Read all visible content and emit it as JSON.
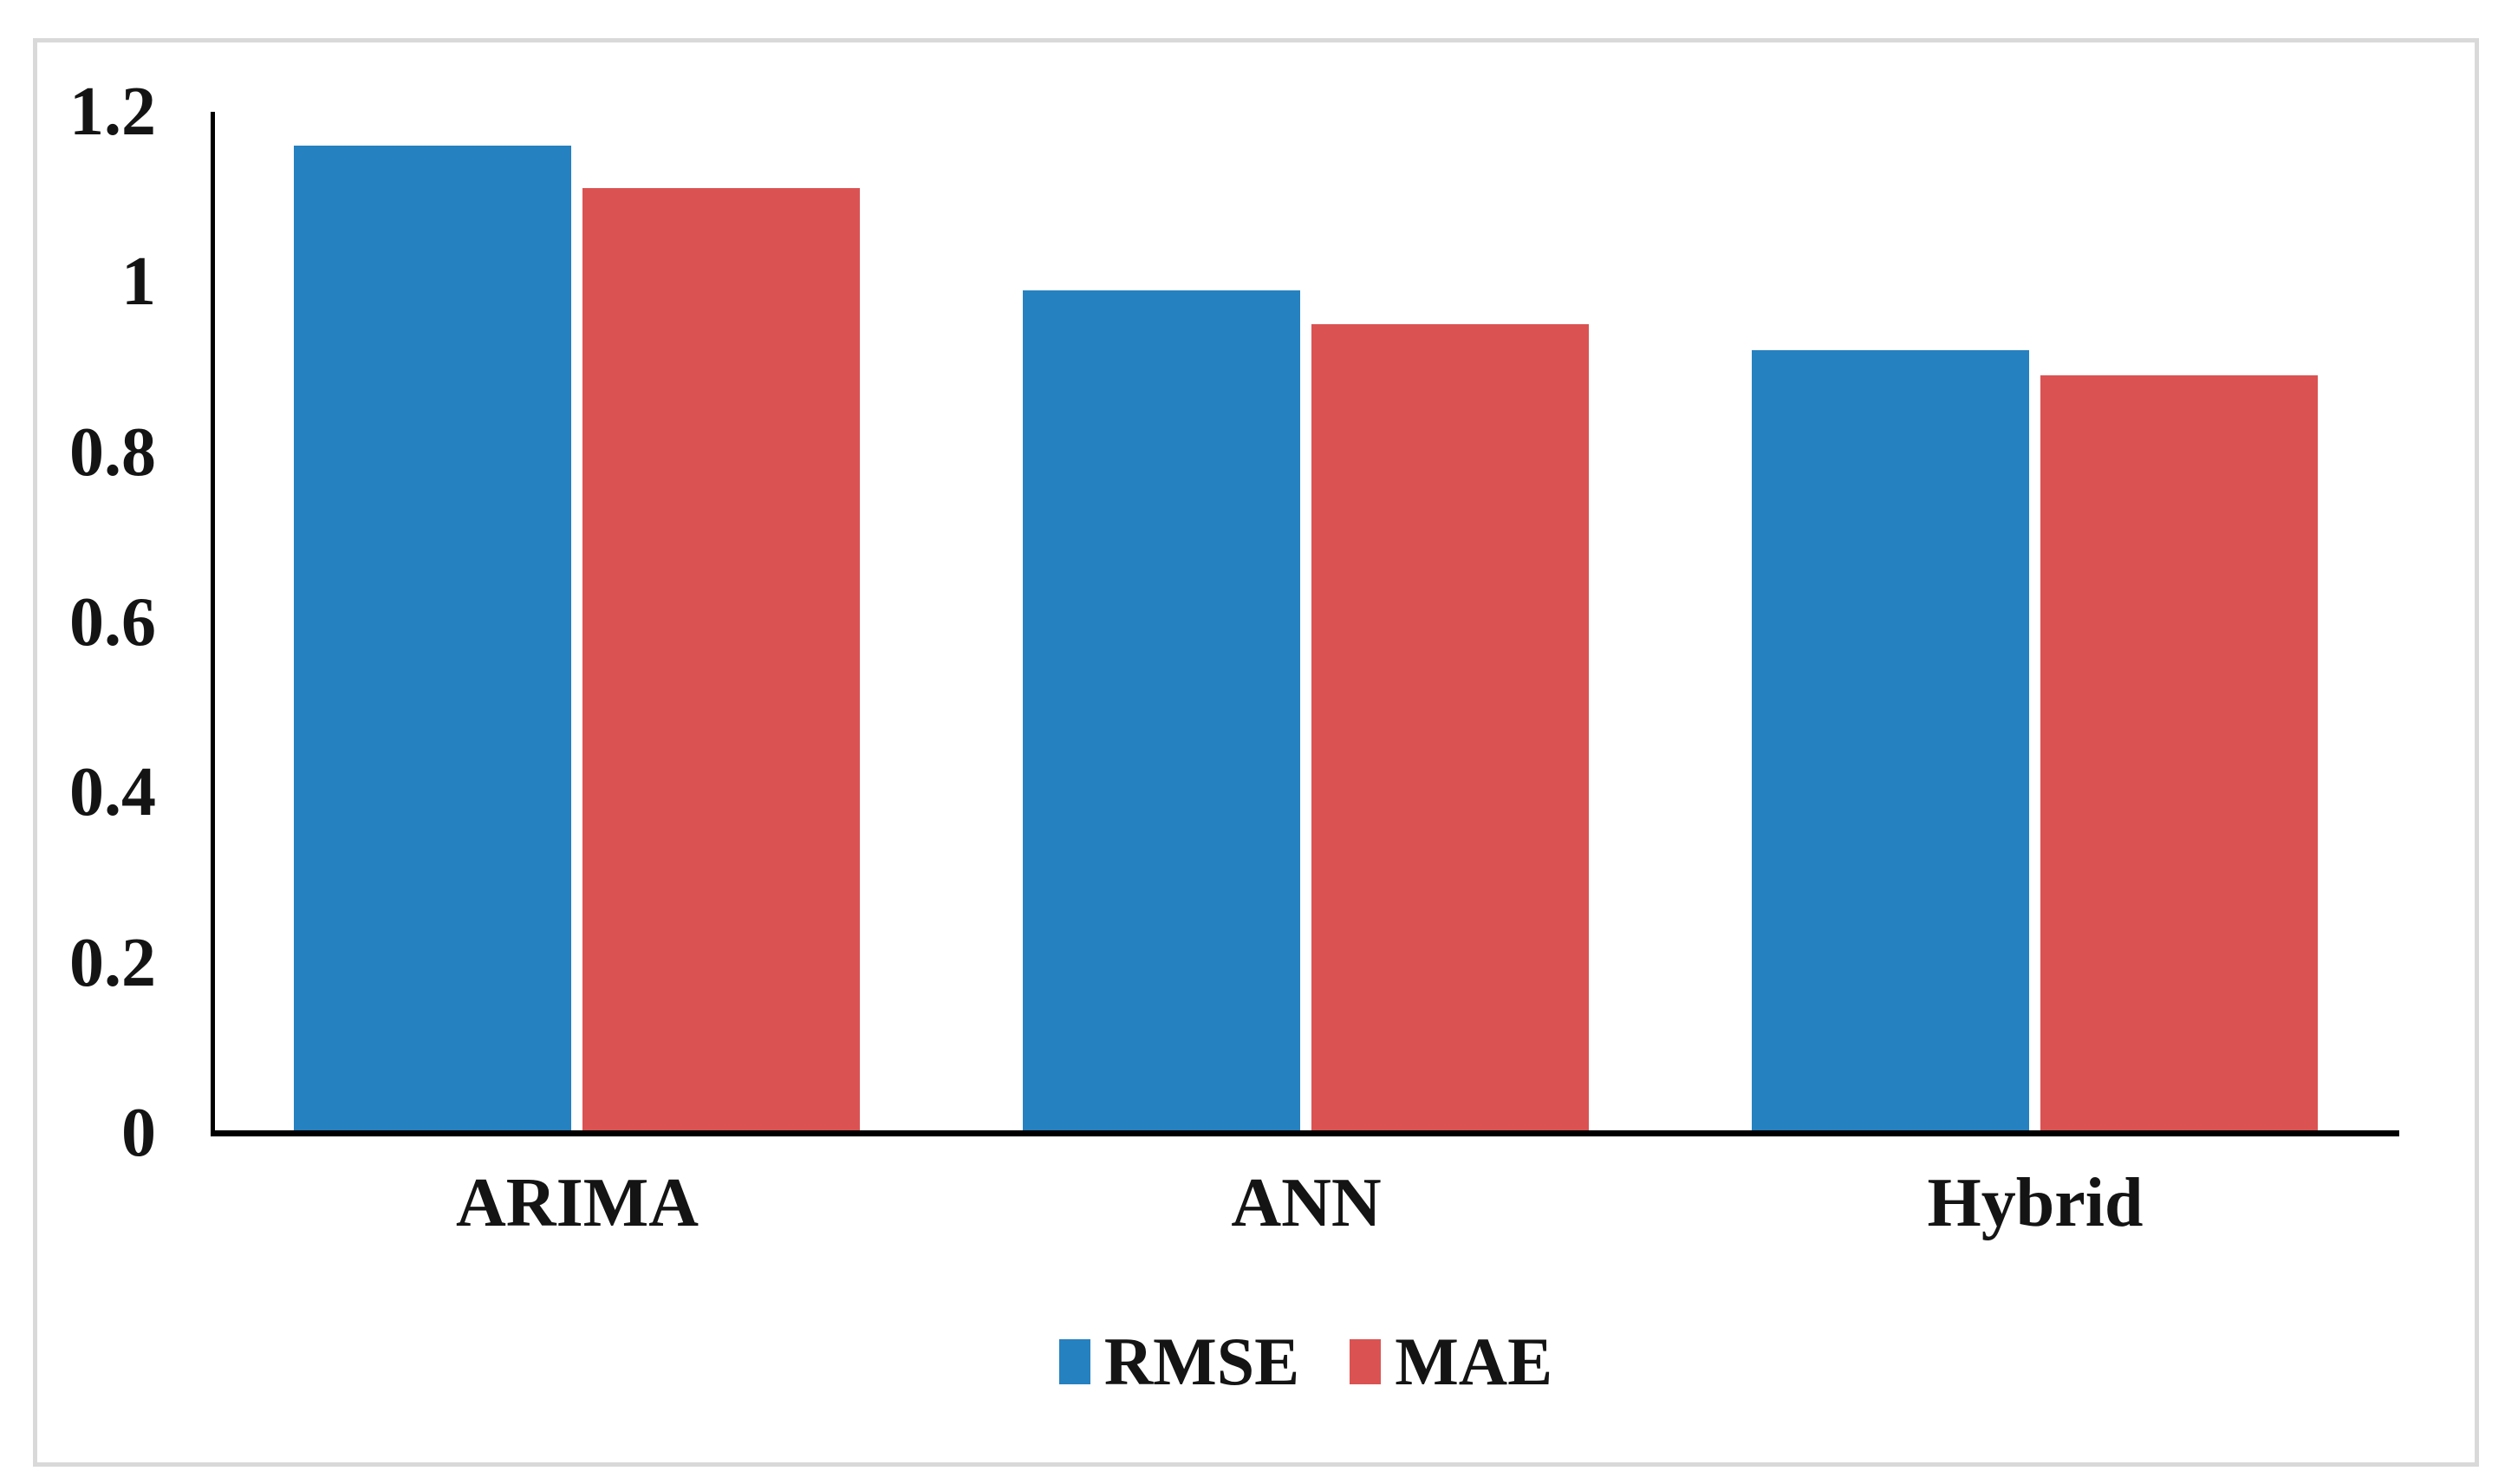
{
  "figure": {
    "background_color": "#ffffff",
    "border_color": "#d9d9d9",
    "axis_color": "#000000",
    "text_color": "#141414"
  },
  "chart_data": {
    "type": "bar",
    "title": "",
    "xlabel": "",
    "ylabel": "",
    "categories": [
      "ARIMA",
      "ANN",
      "Hybrid"
    ],
    "series": [
      {
        "name": "RMSE",
        "color": "#2581C0",
        "values": [
          1.16,
          0.99,
          0.92
        ]
      },
      {
        "name": "MAE",
        "color": "#DB5252",
        "values": [
          1.11,
          0.95,
          0.89
        ]
      }
    ],
    "ylim": [
      0,
      1.2
    ],
    "yticks": [
      "0",
      "0.2",
      "0.4",
      "0.6",
      "0.8",
      "1",
      "1.2"
    ],
    "ytick_values": [
      0,
      0.2,
      0.4,
      0.6,
      0.8,
      1,
      1.2
    ],
    "grid": "off",
    "legend_position": "bottom-center"
  }
}
